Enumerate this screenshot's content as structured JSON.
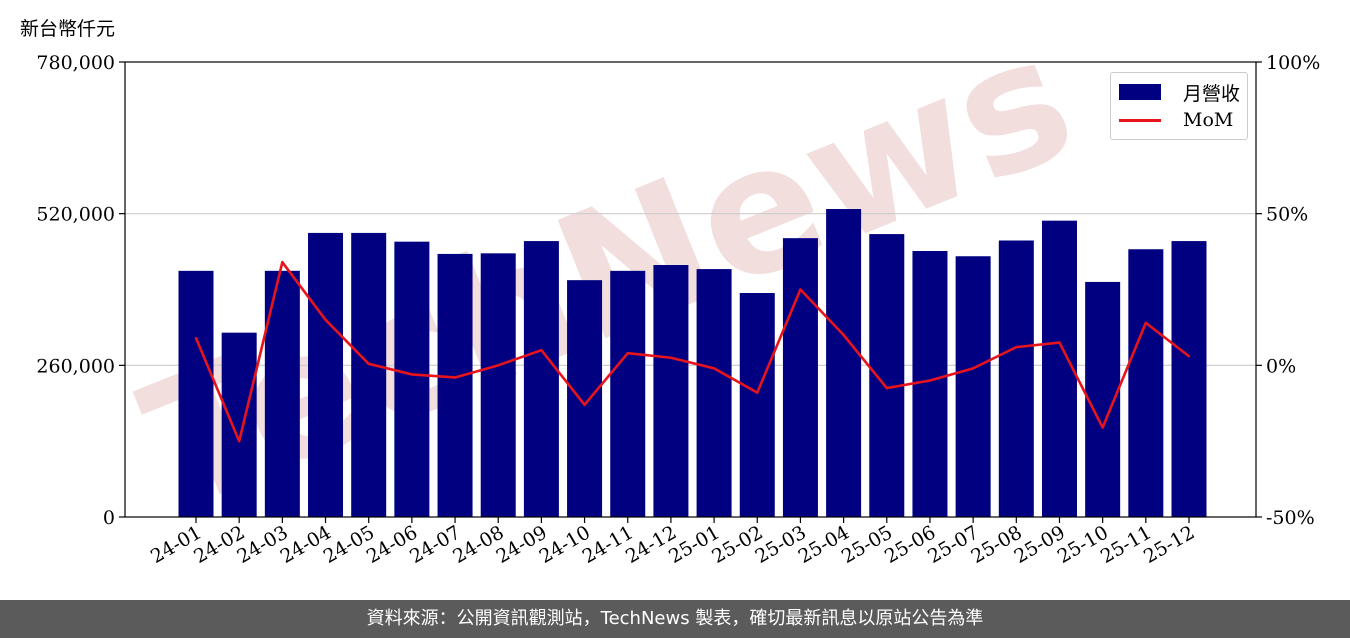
{
  "unit_label": "新台幣仟元",
  "footer_text": "資料來源：公開資訊觀測站，TechNews 製表，確切最新訊息以原站公告為準",
  "watermark": "TechNews",
  "colors": {
    "bar": "#000080",
    "line": "#e8141c",
    "grid": "#cccccc",
    "watermark": "#f3dede"
  },
  "chart_data": {
    "type": "bar",
    "categories": [
      "24-01",
      "24-02",
      "24-03",
      "24-04",
      "24-05",
      "24-06",
      "24-07",
      "24-08",
      "24-09",
      "24-10",
      "24-11",
      "24-12",
      "25-01",
      "25-02",
      "25-03",
      "25-04",
      "25-05",
      "25-06",
      "25-07",
      "25-08",
      "25-09",
      "25-10",
      "25-11",
      "25-12"
    ],
    "series": [
      {
        "name": "月營收",
        "axis": "left",
        "type": "bar",
        "values": [
          422000,
          316000,
          422000,
          487000,
          487000,
          472000,
          451000,
          452000,
          473000,
          406000,
          422000,
          432000,
          425000,
          384000,
          478000,
          528000,
          485000,
          456000,
          447000,
          474000,
          508000,
          403000,
          459000,
          473000
        ]
      },
      {
        "name": "MoM",
        "axis": "right",
        "type": "line",
        "values": [
          9,
          -25,
          34,
          15,
          0.5,
          -3,
          -4,
          0,
          5,
          -13,
          4,
          2.5,
          -1,
          -9,
          25,
          10,
          -7.5,
          -5,
          -1,
          6,
          7.5,
          -20.5,
          14,
          3
        ]
      }
    ],
    "ylim_left": [
      0,
      780000
    ],
    "yticks_left": [
      "0",
      "260,000",
      "520,000",
      "780,000"
    ],
    "yticks_left_values": [
      0,
      260000,
      520000,
      780000
    ],
    "ylim_right": [
      -50,
      100
    ],
    "yticks_right": [
      "-50%",
      "0%",
      "50%",
      "100%"
    ],
    "yticks_right_values": [
      -50,
      0,
      50,
      100
    ],
    "grid": "horizontal",
    "legend_position": "top-right"
  }
}
